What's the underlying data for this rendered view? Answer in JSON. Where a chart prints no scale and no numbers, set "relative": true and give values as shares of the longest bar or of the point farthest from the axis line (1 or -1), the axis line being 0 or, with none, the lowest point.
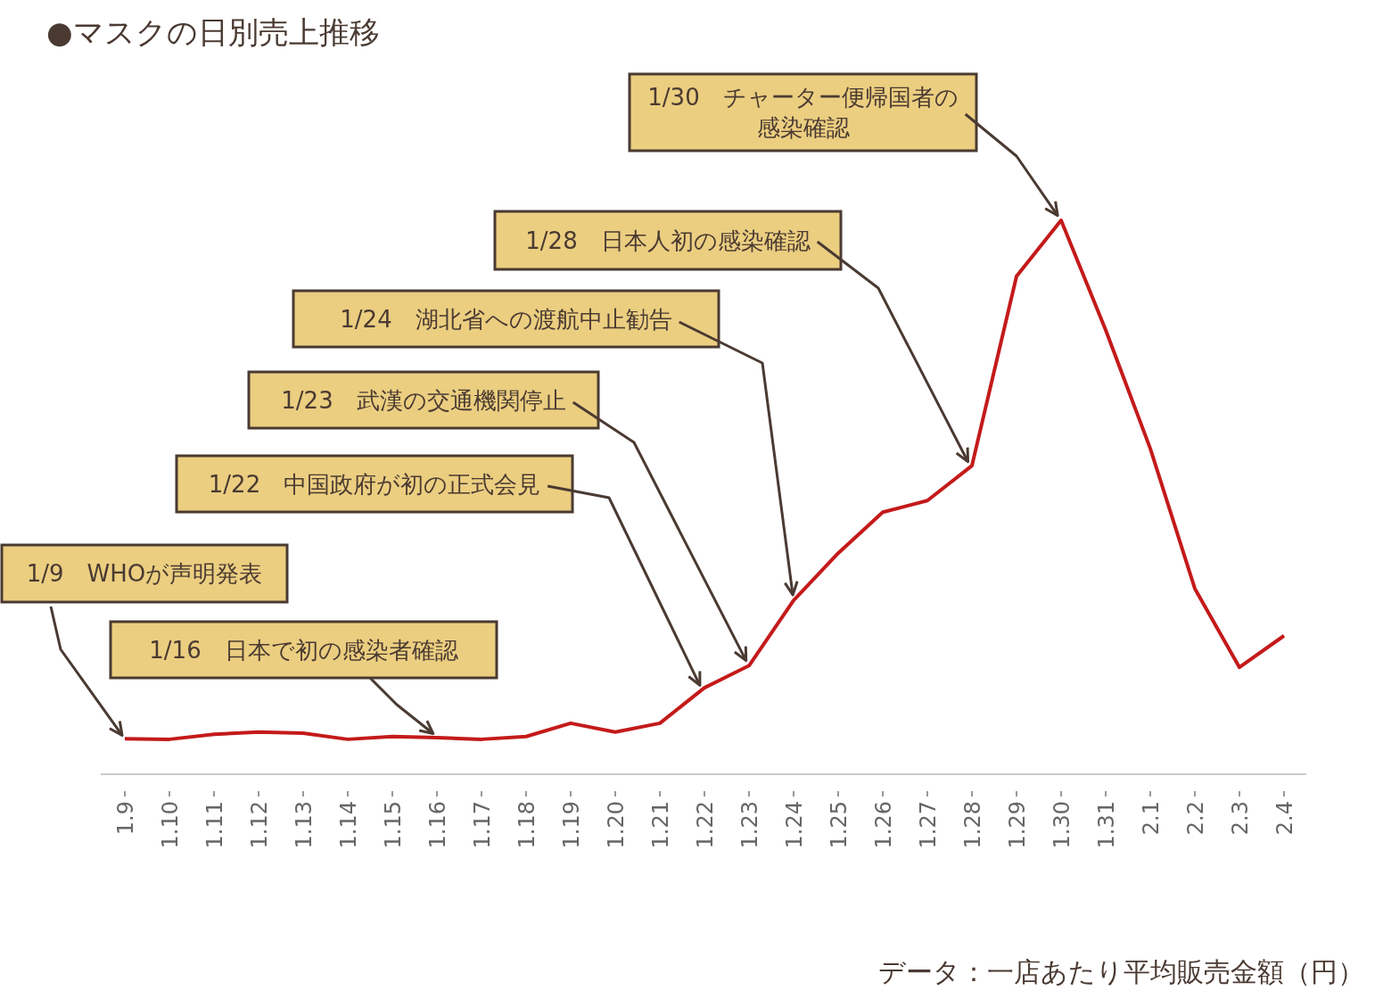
{
  "chart_data": {
    "type": "line",
    "relative": true,
    "title": "●マスクの日別売上推移",
    "color": "#c41a1a",
    "categories": [
      "1.9",
      "1.10",
      "1.11",
      "1.12",
      "1.13",
      "1.14",
      "1.15",
      "1.16",
      "1.17",
      "1.18",
      "1.19",
      "1.20",
      "1.21",
      "1.22",
      "1.23",
      "1.24",
      "1.25",
      "1.26",
      "1.27",
      "1.28",
      "1.29",
      "1.30",
      "1.31",
      "2.1",
      "2.2",
      "2.3",
      "2.4"
    ],
    "values": [
      0.064,
      0.063,
      0.072,
      0.076,
      0.074,
      0.063,
      0.068,
      0.066,
      0.063,
      0.068,
      0.092,
      0.076,
      0.092,
      0.156,
      0.196,
      0.314,
      0.399,
      0.473,
      0.494,
      0.557,
      0.899,
      1,
      0.802,
      0.588,
      0.335,
      0.193,
      0.25
    ],
    "annotations": [
      {
        "text": "1/9　WHOが声明発表",
        "x": "1.9",
        "y": 0.064
      },
      {
        "text": "1/16　日本で初の感染者確認",
        "x": "1.16",
        "y": 0.066
      },
      {
        "text": "1/22　中国政府が初の正式会見",
        "x": "1.22",
        "y": 0.156
      },
      {
        "text": "1/23　武漢の交通機関停止",
        "x": "1.23",
        "y": 0.196
      },
      {
        "text": "1/24　湖北省への渡航中止勧告",
        "x": "1.24",
        "y": 0.314
      },
      {
        "text": "1/28　日本人初の感染確認",
        "x": "1.28",
        "y": 0.557
      },
      {
        "text": "1/30　チャーター便帰国者の感染確認",
        "x": "1.30",
        "y": 1
      },
      "データ：一店あたり平均販売金額（円）"
    ]
  }
}
